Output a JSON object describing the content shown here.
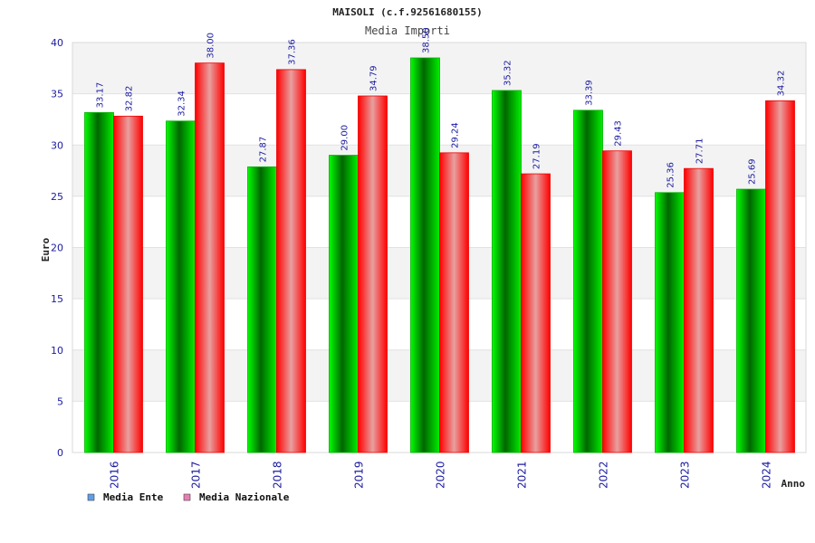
{
  "chart_data": {
    "type": "bar",
    "title": "MAISOLI (c.f.92561680155)",
    "subtitle": "Media Importi",
    "xlabel": "Anno",
    "ylabel": "Euro",
    "ylim": [
      0,
      40
    ],
    "yticks": [
      0,
      5,
      10,
      15,
      20,
      25,
      30,
      35,
      40
    ],
    "grid": true,
    "legend_position": "bottom-left",
    "categories": [
      "2016",
      "2017",
      "2018",
      "2019",
      "2020",
      "2021",
      "2022",
      "2023",
      "2024"
    ],
    "series": [
      {
        "name": "Media Ente",
        "values": [
          33.17,
          32.34,
          27.87,
          29.0,
          38.5,
          35.32,
          33.39,
          25.36,
          25.69
        ],
        "labels": [
          "33.17",
          "32.34",
          "27.87",
          "29.00",
          "38.50",
          "35.32",
          "33.39",
          "25.36",
          "25.69"
        ],
        "color": "#00c000",
        "legend_color": "#5f9ee8"
      },
      {
        "name": "Media Nazionale",
        "values": [
          32.82,
          38.0,
          37.36,
          34.79,
          29.24,
          27.19,
          29.43,
          27.71,
          34.32
        ],
        "labels": [
          "32.82",
          "38.00",
          "37.36",
          "34.79",
          "29.24",
          "27.19",
          "29.43",
          "27.71",
          "34.32"
        ],
        "color": "#ff1a1a",
        "legend_color": "#e67fb5"
      }
    ]
  }
}
